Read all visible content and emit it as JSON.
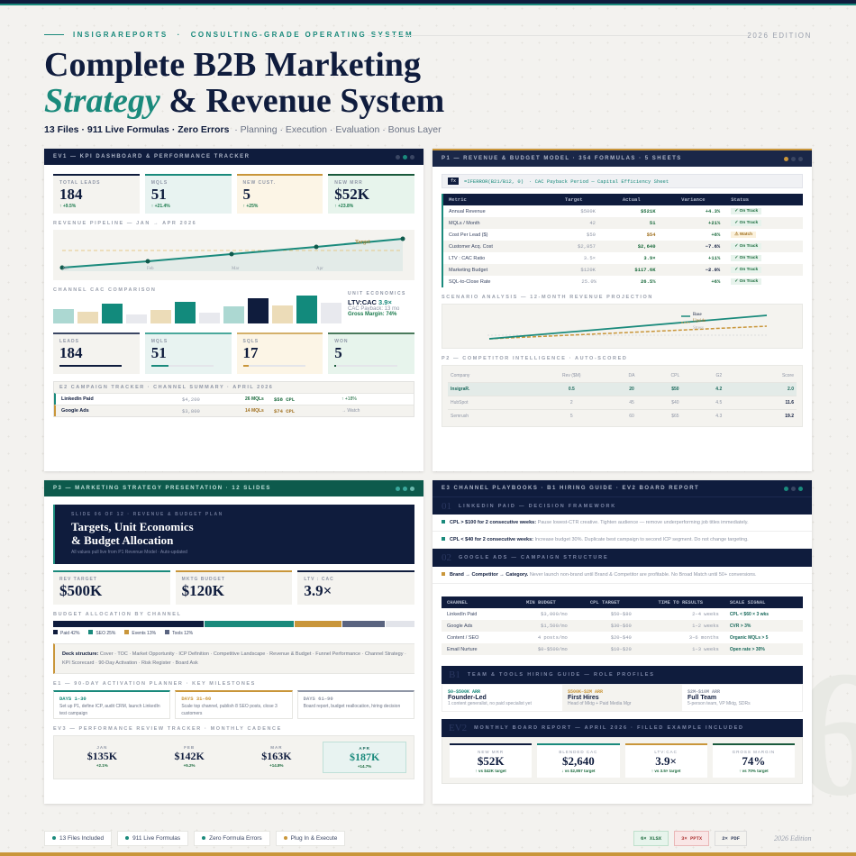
{
  "header": {
    "brand": "INSIGRAREPORTS",
    "tagline": "CONSULTING-GRADE OPERATING SYSTEM",
    "sep": "·",
    "edition": "2026 EDITION",
    "title_line1": "Complete B2B Marketing",
    "title_accent": "Strategy",
    "title_line2_rest": "& Revenue System",
    "sub_bold": "13 Files · 911 Live Formulas · Zero Errors",
    "sub_rest": "·  Planning · Execution · Evaluation · Bonus Layer"
  },
  "ev1": {
    "title": "EV1 — KPI DASHBOARD & PERFORMANCE TRACKER",
    "kpis": [
      {
        "label": "TOTAL LEADS",
        "value": "184",
        "delta": "↑ +9.5%",
        "color": "#0f1c3d",
        "bg": "#f4f3ef"
      },
      {
        "label": "MQLS",
        "value": "51",
        "delta": "↑ +21.4%",
        "color": "#1a8a7c",
        "bg": "#e8f3f1"
      },
      {
        "label": "NEW CUST.",
        "value": "5",
        "delta": "↑ +25%",
        "color": "#c9963a",
        "bg": "#fcf5e6"
      },
      {
        "label": "NEW MRR",
        "value": "$52K",
        "delta": "↑ +23.8%",
        "color": "#1a5a3c",
        "bg": "#e7f4ec"
      }
    ],
    "pipeline_title": "REVENUE PIPELINE — JAN → APR 2026",
    "pipeline_months": [
      "Jan",
      "Feb",
      "Mar",
      "Apr"
    ],
    "target_label": "Target",
    "cac_title": "CHANNEL CAC COMPARISON",
    "unit": {
      "title": "UNIT ECONOMICS",
      "ltv_label": "LTV:CAC",
      "ltv_value": "3.9×",
      "payback": "CAC Payback: 13 mo",
      "margin": "Gross Margin: 74%"
    },
    "funnel": [
      {
        "label": "LEADS",
        "value": "184",
        "color": "#3a4663",
        "bar": "#0f1c3d",
        "pct": 100,
        "bg": "#f4f3ef"
      },
      {
        "label": "MQLS",
        "value": "51",
        "color": "#4aa89c",
        "bar": "#1a8a7c",
        "pct": 28,
        "bg": "#e8f3f1"
      },
      {
        "label": "SQLS",
        "value": "17",
        "color": "#d4b06a",
        "bar": "#c9963a",
        "pct": 9,
        "bg": "#fcf5e6"
      },
      {
        "label": "WON",
        "value": "5",
        "color": "#4a7a5c",
        "bar": "#1a5a3c",
        "pct": 3,
        "bg": "#e7f4ec"
      }
    ],
    "campaign_title": "E2 CAMPAIGN TRACKER · CHANNEL SUMMARY · APRIL 2026",
    "campaigns": [
      {
        "name": "LinkedIn Paid",
        "spend": "$4,200",
        "mqls": "26 MQLs",
        "cpl": "$58 CPL",
        "trend": "↑ +18%"
      },
      {
        "name": "Google Ads",
        "spend": "$3,800",
        "mqls": "14 MQLs",
        "cpl": "$74 CPL",
        "trend": "→ Watch"
      }
    ]
  },
  "p1": {
    "title": "P1 — REVENUE & BUDGET MODEL · 354 FORMULAS · 5 SHEETS",
    "fx": "fx",
    "formula": "=IFERROR(B21/B12, 0)",
    "formula_desc": "·  CAC Payback Period — Capital Efficiency Sheet",
    "columns": [
      "Metric",
      "Target",
      "Actual",
      "Variance",
      "Status"
    ],
    "rows": [
      {
        "m": "Annual Revenue",
        "t": "$500K",
        "a": "$521K",
        "v": "+4.3%",
        "s": "✓ On Track",
        "st": "ok"
      },
      {
        "m": "MQLs / Month",
        "t": "42",
        "a": "51",
        "v": "+21%",
        "s": "✓ On Track",
        "st": "ok"
      },
      {
        "m": "Cost Per Lead ($)",
        "t": "$50",
        "a": "$54",
        "v": "+8%",
        "s": "⚠ Watch",
        "st": "wt"
      },
      {
        "m": "Customer Acq. Cost",
        "t": "$2,857",
        "a": "$2,640",
        "v": "−7.6%",
        "s": "✓ On Track",
        "st": "ok"
      },
      {
        "m": "LTV : CAC Ratio",
        "t": "3.5×",
        "a": "3.9×",
        "v": "+11%",
        "s": "✓ On Track",
        "st": "ok"
      },
      {
        "m": "Marketing Budget",
        "t": "$120K",
        "a": "$117.6K",
        "v": "−2.0%",
        "s": "✓ On Track",
        "st": "ok"
      },
      {
        "m": "SQL-to-Close Rate",
        "t": "25.0%",
        "a": "26.5%",
        "v": "+6%",
        "s": "✓ On Track",
        "st": "ok"
      }
    ],
    "scenario_title": "SCENARIO ANALYSIS — 12-MONTH REVENUE PROJECTION",
    "scenarios": [
      "Base",
      "Upside",
      "Stress"
    ],
    "comp_title": "P2 — COMPETITOR INTELLIGENCE · AUTO-SCORED",
    "comp_cols": [
      "Company",
      "Rev ($M)",
      "DA",
      "CPL",
      "G2",
      "Score"
    ],
    "comp_rows": [
      [
        "InsigraR.",
        "0.5",
        "20",
        "$50",
        "4.2",
        "2.0"
      ],
      [
        "HubSpot",
        "2",
        "45",
        "$40",
        "4.5",
        "11.6"
      ],
      [
        "Semrush",
        "5",
        "60",
        "$65",
        "4.3",
        "19.2"
      ]
    ]
  },
  "p3": {
    "title": "P3 — MARKETING STRATEGY PRESENTATION · 12 SLIDES",
    "slide_eyebrow": "SLIDE 06 OF 12  ·  REVENUE & BUDGET PLAN",
    "slide_title1": "Targets, Unit Economics",
    "slide_title2": "& Budget Allocation",
    "slide_note": "All values pull live from P1 Revenue Model · Auto-updated",
    "kpis": [
      {
        "label": "REV TARGET",
        "value": "$500K",
        "color": "#1a8a7c"
      },
      {
        "label": "MKTG BUDGET",
        "value": "$120K",
        "color": "#c9963a"
      },
      {
        "label": "LTV : CAC",
        "value": "3.9×",
        "color": "#0f1c3d"
      }
    ],
    "budget_title": "BUDGET ALLOCATION BY CHANNEL",
    "budget": [
      {
        "label": "Paid 42%",
        "pct": 42,
        "color": "#0f1c3d"
      },
      {
        "label": "SEO 25%",
        "pct": 25,
        "color": "#1a8a7c"
      },
      {
        "label": "Events 13%",
        "pct": 13,
        "color": "#c9963a"
      },
      {
        "label": "Tools 12%",
        "pct": 12,
        "color": "#5a6480"
      },
      {
        "label": "",
        "pct": 8,
        "color": "#e2e4ea"
      }
    ],
    "deck_label": "Deck structure:",
    "deck_text": "Cover · TOC · Market Opportunity · ICP Definition · Competitive Landscape · Revenue & Budget · Funnel Performance · Channel Strategy · KPI Scorecard · 90-Day Activation · Risk Register · Board Ask",
    "plan_title": "E1 — 90-DAY ACTIVATION PLANNER · KEY MILESTONES",
    "plans": [
      {
        "days": "DAYS 1–30",
        "text": "Set up P1, define ICP, audit CRM, launch LinkedIn test campaign",
        "color": "#1a8a7c"
      },
      {
        "days": "DAYS 31–60",
        "text": "Scale top channel, publish 8 SEO posts, close 3 customers",
        "color": "#c9963a"
      },
      {
        "days": "DAYS 61–90",
        "text": "Board report, budget reallocation, hiring decision",
        "color": "#8f96a6"
      }
    ],
    "review_title": "EV3 — PERFORMANCE REVIEW TRACKER · MONTHLY CADENCE",
    "months": [
      {
        "m": "JAN",
        "v": "$135K",
        "d": "+2.1%"
      },
      {
        "m": "FEB",
        "v": "$142K",
        "d": "+5.2%"
      },
      {
        "m": "MAR",
        "v": "$163K",
        "d": "+14.8%"
      },
      {
        "m": "APR",
        "v": "$187K",
        "d": "+14.7%"
      }
    ]
  },
  "e3": {
    "title": "E3 CHANNEL PLAYBOOKS · B1 HIRING GUIDE · EV2 BOARD REPORT",
    "s1_num": "01",
    "s1_title": "LINKEDIN PAID — DECISION FRAMEWORK",
    "rules": [
      {
        "b": "CPL > $100 for 2 consecutive weeks:",
        "t": " Pause lowest-CTR creative. Tighten audience — remove underperforming job titles immediately."
      },
      {
        "b": "CPL < $40 for 2 consecutive weeks:",
        "t": " Increase budget 30%. Duplicate best campaign to second ICP segment. Do not change targeting."
      }
    ],
    "s2_num": "02",
    "s2_title": "GOOGLE ADS — CAMPAIGN STRUCTURE",
    "g_b": "Brand → Competitor → Category.",
    "g_t": " Never launch non-brand until Brand & Competitor are profitable. No Broad Match until 50+ conversions.",
    "cols": [
      "CHANNEL",
      "MIN BUDGET",
      "CPL TARGET",
      "TIME TO RESULTS",
      "SCALE SIGNAL"
    ],
    "rows": [
      [
        "LinkedIn Paid",
        "$3,000/mo",
        "$50–$80",
        "2–4 weeks",
        "CPL < $60 × 3 wks"
      ],
      [
        "Google Ads",
        "$1,500/mo",
        "$30–$60",
        "1–2 weeks",
        "CVR > 3%"
      ],
      [
        "Content / SEO",
        "4 posts/mo",
        "$20–$40",
        "3–6 months",
        "Organic MQLs > 5"
      ],
      [
        "Email Nurture",
        "$0–$500/mo",
        "$10–$20",
        "1–3 weeks",
        "Open rate > 30%"
      ]
    ],
    "b1_num": "B1",
    "b1_title": "TEAM & TOOLS HIRING GUIDE — ROLE PROFILES",
    "roles": [
      {
        "arr": "$0–$500K ARR",
        "name": "Founder-Led",
        "desc": "1 content generalist, no paid specialist yet",
        "color": "#1a8a7c"
      },
      {
        "arr": "$500K–$2M ARR",
        "name": "First Hires",
        "desc": "Head of Mktg + Paid Media Mgr",
        "color": "#c9963a"
      },
      {
        "arr": "$2M–$10M ARR",
        "name": "Full Team",
        "desc": "5-person team, VP Mktg, SDRs",
        "color": "#8f96a6"
      }
    ],
    "ev2_num": "EV2",
    "ev2_title": "MONTHLY BOARD REPORT — APRIL 2026 · FILLED EXAMPLE INCLUDED",
    "board": [
      {
        "l": "NEW MRR",
        "v": "$52K",
        "d": "↑ vs $42K target",
        "c": "#0f1c3d"
      },
      {
        "l": "BLENDED CAC",
        "v": "$2,640",
        "d": "↓ vs $2,857 target",
        "c": "#1a8a7c"
      },
      {
        "l": "LTV:CAC",
        "v": "3.9×",
        "d": "↑ vs 3.5× target",
        "c": "#c9963a"
      },
      {
        "l": "GROSS MARGIN",
        "v": "74%",
        "d": "↑ vs 70% target",
        "c": "#1a5a3c"
      }
    ]
  },
  "footer": {
    "chips": [
      {
        "t": "13 Files Included",
        "c": "#1a8a7c"
      },
      {
        "t": "911 Live Formulas",
        "c": "#1a8a7c"
      },
      {
        "t": "Zero Formula Errors",
        "c": "#1a8a7c"
      },
      {
        "t": "Plug In & Execute",
        "c": "#c9963a"
      }
    ],
    "formats": [
      {
        "t": "6× XLSX",
        "bg": "#e7f4ec",
        "c": "#1a6a3c",
        "b": "#bfe0cc"
      },
      {
        "t": "3× PPTX",
        "bg": "#f9e6e6",
        "c": "#b03a3a",
        "b": "#eab8b8"
      },
      {
        "t": "2× PDF",
        "bg": "#f4f3ef",
        "c": "#3a4663",
        "b": "#dcdcdc"
      }
    ],
    "edition": "2026 Edition"
  }
}
